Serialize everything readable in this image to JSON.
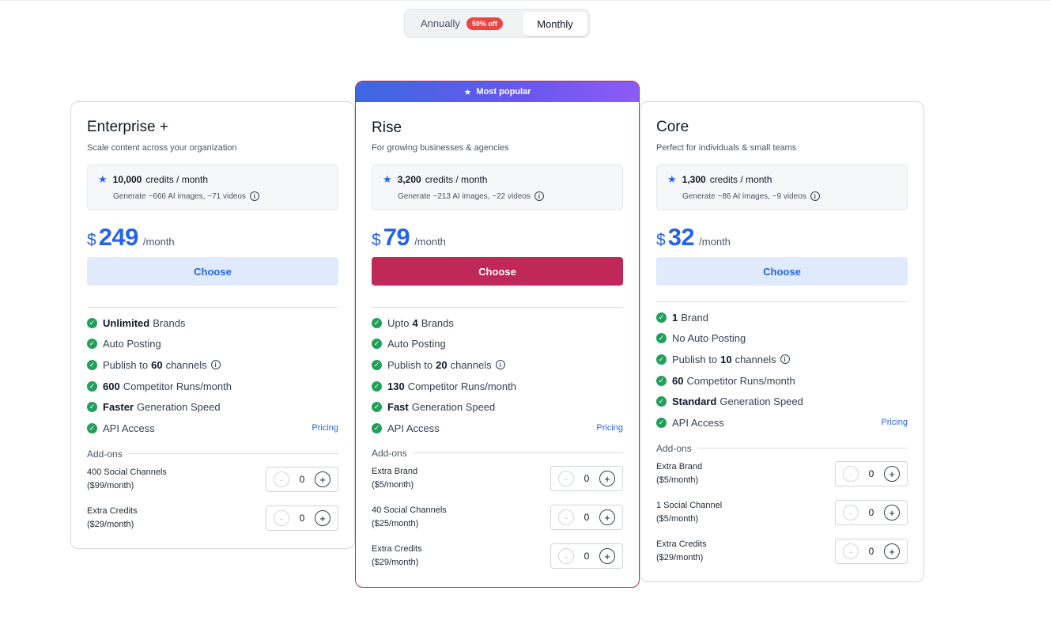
{
  "toggle": {
    "annual_label": "Annually",
    "annual_badge": "50% off",
    "monthly_label": "Monthly",
    "selected": "Monthly"
  },
  "colors": {
    "accent": "#2563eb",
    "popular_cta": "#c0285a",
    "check": "#22a05a",
    "badge": "#ef4444"
  },
  "plans": [
    {
      "name": "Enterprise +",
      "subtitle": "Scale content across your organization",
      "credits_amount": "10,000",
      "credits_unit": "credits / month",
      "credits_generate": "Generate ~666 AI images, ~71 videos",
      "currency": "$",
      "price": "249",
      "per": "/month",
      "cta": "Choose",
      "features": [
        {
          "bold": "Unlimited",
          "text": "Brands"
        },
        {
          "bold": "",
          "text": "Auto Posting"
        },
        {
          "pre": "Publish to",
          "bold": "60",
          "text": "channels"
        },
        {
          "bold": "600",
          "text": "Competitor Runs/month"
        },
        {
          "bold": "Faster",
          "text": "Generation Speed"
        },
        {
          "bold": "",
          "text": "API Access"
        }
      ],
      "pricing_link": "Pricing",
      "addons_label": "Add-ons",
      "addons": [
        {
          "name": "400 Social Channels",
          "price": "($99/month)",
          "qty": "0"
        },
        {
          "name": "Extra Credits",
          "price": "($29/month)",
          "qty": "0"
        }
      ]
    },
    {
      "badge": "Most popular",
      "name": "Rise",
      "subtitle": "For growing businesses & agencies",
      "credits_amount": "3,200",
      "credits_unit": "credits / month",
      "credits_generate": "Generate ~213 AI images, ~22 videos",
      "currency": "$",
      "price": "79",
      "per": "/month",
      "cta": "Choose",
      "features": [
        {
          "pre": "Upto",
          "bold": "4",
          "text": "Brands"
        },
        {
          "bold": "",
          "text": "Auto Posting"
        },
        {
          "pre": "Publish to",
          "bold": "20",
          "text": "channels"
        },
        {
          "bold": "130",
          "text": "Competitor Runs/month"
        },
        {
          "bold": "Fast",
          "text": "Generation Speed"
        },
        {
          "bold": "",
          "text": "API Access"
        }
      ],
      "pricing_link": "Pricing",
      "addons_label": "Add-ons",
      "addons": [
        {
          "name": "Extra Brand",
          "price": "($5/month)",
          "qty": "0"
        },
        {
          "name": "40 Social Channels",
          "price": "($25/month)",
          "qty": "0"
        },
        {
          "name": "Extra Credits",
          "price": "($29/month)",
          "qty": "0"
        }
      ]
    },
    {
      "name": "Core",
      "subtitle": "Perfect for individuals & small teams",
      "credits_amount": "1,300",
      "credits_unit": "credits / month",
      "credits_generate": "Generate ~86 AI images, ~9 videos",
      "currency": "$",
      "price": "32",
      "per": "/month",
      "cta": "Choose",
      "features": [
        {
          "bold": "1",
          "text": "Brand"
        },
        {
          "bold": "",
          "text": "No Auto Posting"
        },
        {
          "pre": "Publish to",
          "bold": "10",
          "text": "channels"
        },
        {
          "bold": "60",
          "text": "Competitor Runs/month"
        },
        {
          "bold": "Standard",
          "text": "Generation Speed"
        },
        {
          "bold": "",
          "text": "API Access"
        }
      ],
      "pricing_link": "Pricing",
      "addons_label": "Add-ons",
      "addons": [
        {
          "name": "Extra Brand",
          "price": "($5/month)",
          "qty": "0"
        },
        {
          "name": "1 Social Channel",
          "price": "($5/month)",
          "qty": "0"
        },
        {
          "name": "Extra Credits",
          "price": "($29/month)",
          "qty": "0"
        }
      ]
    }
  ]
}
